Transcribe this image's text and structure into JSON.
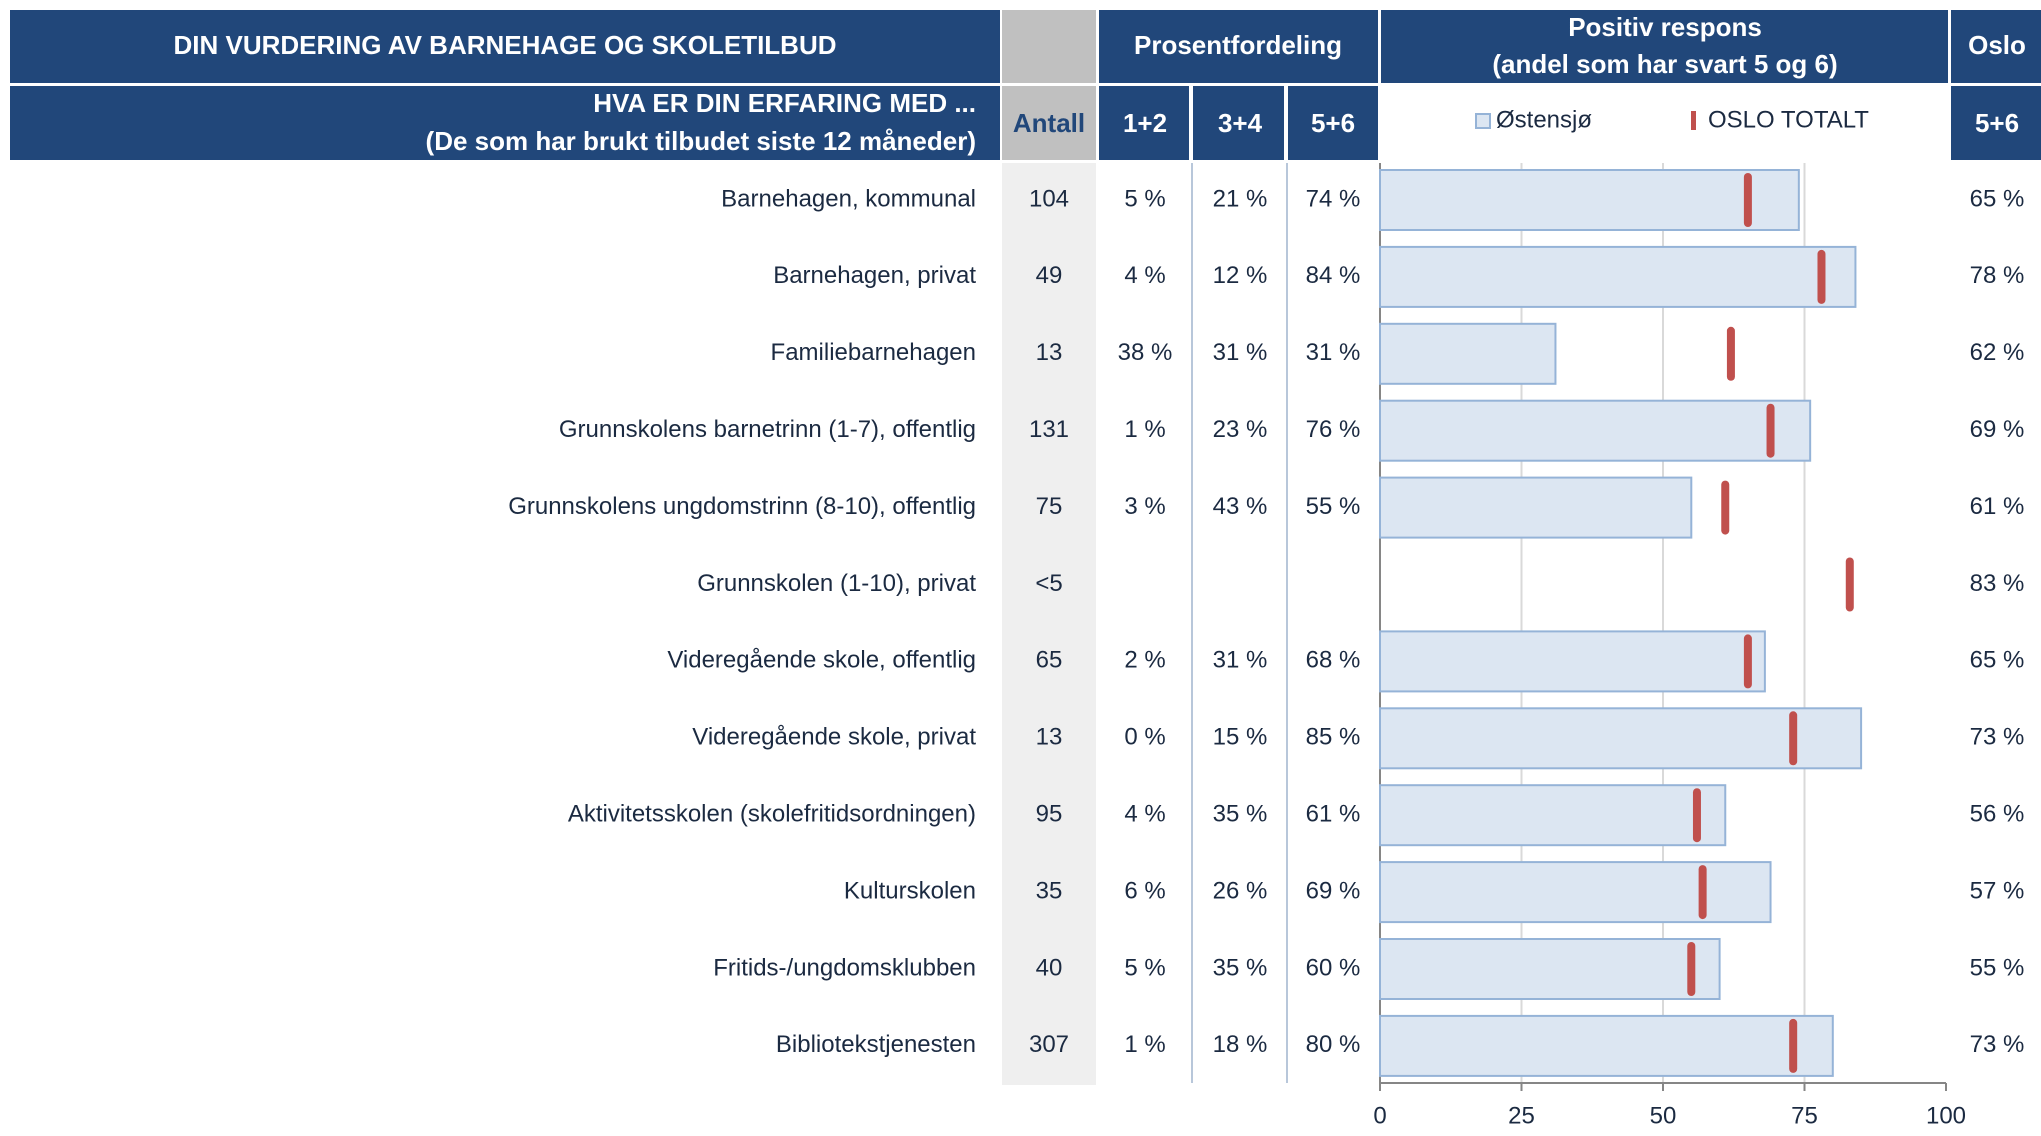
{
  "header": {
    "title": "DIN VURDERING AV BARNEHAGE OG SKOLETILBUD",
    "question": "HVA ER DIN ERFARING MED ...",
    "question_note": "(De som har brukt tilbudet siste 12 måneder)",
    "count": "Antall",
    "distribution": "Prosentfordeling",
    "positive": "Positiv respons",
    "positive_note": "(andel som har svart 5 og 6)",
    "oslo": "Oslo",
    "columns": [
      "1+2",
      "3+4",
      "5+6"
    ],
    "oslo_column": "5+6"
  },
  "table": {
    "counts": [
      "104",
      "49",
      "13",
      "131",
      "75",
      "<5",
      "65",
      "13",
      "95",
      "35",
      "40",
      "307"
    ],
    "rows": [
      [
        "5 %",
        "21 %"
      ],
      [
        "4 %",
        "12 %"
      ],
      [
        "38 %",
        "31 %"
      ],
      [
        "1 %",
        "23 %"
      ],
      [
        "3 %",
        "43 %"
      ],
      [
        null,
        null
      ],
      [
        "2 %",
        "31 %"
      ],
      [
        "0 %",
        "15 %"
      ],
      [
        "4 %",
        "35 %"
      ],
      [
        "6 %",
        "26 %"
      ],
      [
        "5 %",
        "35 %"
      ],
      [
        "1 %",
        "18 %"
      ]
    ]
  },
  "chart_data": {
    "type": "bar",
    "orientation": "horizontal",
    "categories": [
      "Barnehagen, kommunal",
      "Barnehagen, privat",
      "Familiebarnehagen",
      "Grunnskolens barnetrinn (1-7), offentlig",
      "Grunnskolens ungdomstrinn (8-10), offentlig",
      "Grunnskolen (1-10), privat",
      "Videregående skole, offentlig",
      "Videregående skole, privat",
      "Aktivitetsskolen (skolefritidsordningen)",
      "Kulturskolen",
      "Fritids-/ungdomsklubben",
      "Bibliotekstjenesten"
    ],
    "series": [
      {
        "name": "Østensjø",
        "color": "#dce6f2",
        "edge": "#95b3d7",
        "values": [
          74,
          84,
          31,
          76,
          55,
          null,
          68,
          85,
          61,
          69,
          60,
          80
        ],
        "value_labels": [
          "74 %",
          "84 %",
          "31 %",
          "76 %",
          "55 %",
          null,
          "68 %",
          "85 %",
          "61 %",
          "69 %",
          "60 %",
          "80 %"
        ]
      },
      {
        "name": "OSLO TOTALT",
        "type": "marker",
        "color": "#c0504d",
        "values": [
          65,
          78,
          62,
          69,
          61,
          83,
          65,
          73,
          56,
          57,
          55,
          73
        ],
        "value_labels": [
          "65 %",
          "78 %",
          "62 %",
          "69 %",
          "61 %",
          "83 %",
          "65 %",
          "73 %",
          "56 %",
          "57 %",
          "55 %",
          "73 %"
        ]
      }
    ],
    "xlim": [
      0,
      100
    ],
    "xticks": [
      0,
      25,
      50,
      75,
      100
    ],
    "grid": true
  }
}
